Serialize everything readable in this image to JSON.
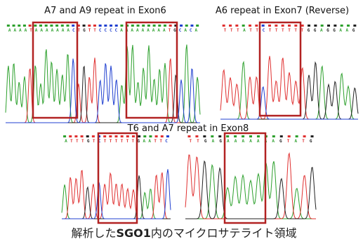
{
  "titles": [
    "A7 and A9 repeat in Exon6",
    "A6 repeat in Exon7 (Reverse)",
    "T6 and A7 repeat in Exon8"
  ],
  "panels": [
    {
      "sequence": "AAAATAAAAAAACTGTTCCCCAAAAAAAAATGCACA"
    },
    {
      "sequence": "TTTATTCTTTTTTGGAGGAAG"
    },
    {
      "sequence": "ATTTGTCTTTTTTGAATTC"
    },
    {
      "sequence": "TTGAGAAAAAAAGTATG"
    }
  ],
  "caption": {
    "before": "解析した",
    "bold": "SGO1",
    "after": "内のマイクロサテライト領域"
  }
}
